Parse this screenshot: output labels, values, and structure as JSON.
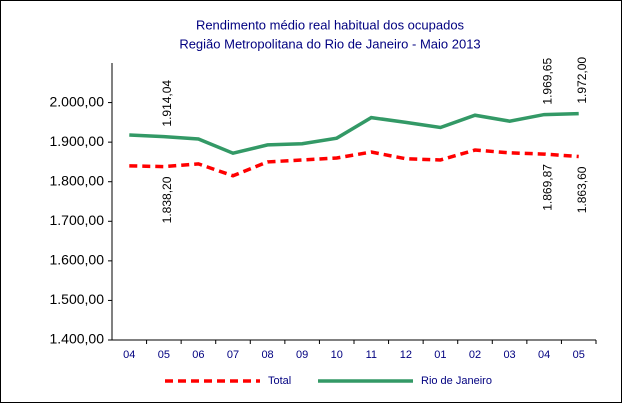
{
  "chart_data": {
    "type": "line",
    "title": "Rendimento médio real habitual dos ocupados",
    "subtitle": "Região Metropolitana do Rio de Janeiro - Maio 2013",
    "categories": [
      "04",
      "05",
      "06",
      "07",
      "08",
      "09",
      "10",
      "11",
      "12",
      "01",
      "02",
      "03",
      "04",
      "05"
    ],
    "series": [
      {
        "name": "Total",
        "color": "#ff0000",
        "dash": true,
        "values": [
          1840,
          1838.2,
          1845,
          1815,
          1850,
          1855,
          1860,
          1875,
          1858,
          1855,
          1880,
          1873,
          1869.87,
          1863.6
        ],
        "value_labels": [
          null,
          "1.838,20",
          null,
          null,
          null,
          null,
          null,
          null,
          null,
          null,
          null,
          null,
          "1.869,87",
          "1.863,60"
        ]
      },
      {
        "name": "Rio de Janeiro",
        "color": "#339966",
        "dash": false,
        "values": [
          1918,
          1914.04,
          1908,
          1872,
          1893,
          1896,
          1910,
          1962,
          1950,
          1937,
          1968,
          1953,
          1969.65,
          1972.0
        ],
        "value_labels": [
          null,
          "1.914,04",
          null,
          null,
          null,
          null,
          null,
          null,
          null,
          null,
          null,
          null,
          "1.969,65",
          "1.972,00"
        ]
      }
    ],
    "ylim": [
      1400,
      2100
    ],
    "yticks": [
      {
        "value": 1400,
        "label": "1.400,00"
      },
      {
        "value": 1500,
        "label": "1.500,00"
      },
      {
        "value": 1600,
        "label": "1.600,00"
      },
      {
        "value": 1700,
        "label": "1.700,00"
      },
      {
        "value": 1800,
        "label": "1.800,00"
      },
      {
        "value": 1900,
        "label": "1.900,00"
      },
      {
        "value": 2000,
        "label": "2.000,00"
      }
    ],
    "grid": false
  }
}
